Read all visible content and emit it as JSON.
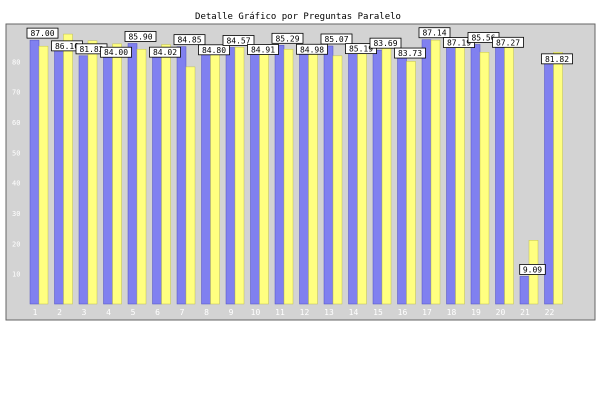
{
  "chart_data": {
    "type": "bar",
    "title": "Detalle Gráfico por Preguntas Paralelo",
    "categories": [
      "1",
      "2",
      "3",
      "4",
      "5",
      "6",
      "7",
      "8",
      "9",
      "10",
      "11",
      "12",
      "13",
      "14",
      "15",
      "16",
      "17",
      "18",
      "19",
      "20",
      "21",
      "22"
    ],
    "series": [
      {
        "values": [
          87.0,
          86.1,
          81.82,
          84.0,
          85.9,
          84.02,
          84.85,
          84.8,
          84.57,
          84.91,
          85.29,
          84.98,
          85.07,
          85.19,
          83.69,
          83.73,
          87.14,
          87.19,
          85.56,
          87.27,
          9.09,
          81.82
        ]
      },
      {
        "values": [
          85.0,
          89.0,
          86.79,
          85.77,
          84.0,
          85.55,
          78.18,
          84.0,
          84.64,
          83.73,
          84.0,
          84.55,
          81.82,
          84.0,
          84.64,
          80.0,
          87.0,
          86.0,
          83.0,
          87.0,
          21.0,
          83.0
        ]
      }
    ],
    "ylim": [
      0,
      91
    ],
    "yticks": [
      10,
      20,
      30,
      40,
      50,
      60,
      70,
      80
    ],
    "grid": false,
    "colors": {
      "series1": "#8080f0",
      "series2": "#ffff80",
      "plot_bg": "#d3d3d3"
    }
  }
}
